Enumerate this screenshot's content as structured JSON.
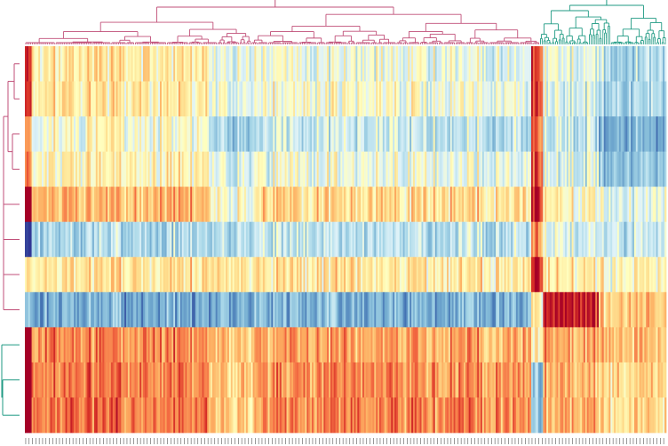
{
  "chart_data": {
    "type": "heatmap",
    "title": "",
    "xlabel": "",
    "ylabel": "",
    "row_labels": [],
    "column_labels": [],
    "n_rows": 11,
    "n_columns": 380,
    "value_range": [
      -3,
      3
    ],
    "colormap": "RdYlBu_r",
    "column_clusters": [
      {
        "name": "",
        "color": "#c04f78",
        "n_columns": 305
      },
      {
        "name": "",
        "color": "#1f9a83",
        "n_columns": 75
      }
    ],
    "row_clusters": [
      {
        "name": "",
        "color": "#c04f78",
        "rows": [
          0,
          1,
          2,
          3,
          4,
          5,
          6,
          7
        ]
      },
      {
        "name": "",
        "color": "#1f9a83",
        "rows": [
          8,
          9,
          10
        ]
      }
    ],
    "row_base_values": [
      0.35,
      0.2,
      -0.25,
      0.15,
      0.9,
      -0.9,
      0.5,
      -1.6,
      1.35,
      1.6,
      1.6
    ],
    "column_profile_segments": [
      {
        "columns": [
          0,
          4
        ],
        "row_offsets": [
          2.2,
          2.0,
          1.4,
          1.7,
          2.6,
          -2.2,
          0.2,
          0.1,
          2.2,
          2.2,
          2.0
        ]
      },
      {
        "columns": [
          5,
          110
        ],
        "row_offsets": [
          0.2,
          0.3,
          0.3,
          0.2,
          0.3,
          0.0,
          0.1,
          0.0,
          0.3,
          0.2,
          0.3
        ]
      },
      {
        "columns": [
          110,
          140
        ],
        "row_offsets": [
          -0.6,
          -0.4,
          -0.9,
          -0.6,
          -0.8,
          0.0,
          0.0,
          0.0,
          -0.4,
          -0.6,
          -0.7
        ]
      },
      {
        "columns": [
          140,
          300
        ],
        "row_offsets": [
          -0.5,
          -0.2,
          -0.4,
          -0.3,
          -0.2,
          0.2,
          0.1,
          0.1,
          0.0,
          0.0,
          0.1
        ]
      },
      {
        "columns": [
          300,
          307
        ],
        "row_offsets": [
          2.0,
          2.2,
          2.4,
          2.2,
          2.0,
          2.6,
          2.2,
          2.2,
          -1.0,
          -2.8,
          -2.8
        ]
      },
      {
        "columns": [
          307,
          340
        ],
        "row_offsets": [
          -0.6,
          -0.6,
          -0.4,
          -0.6,
          -0.7,
          0.5,
          0.0,
          4.4,
          0.0,
          -0.4,
          -0.4
        ]
      },
      {
        "columns": [
          340,
          380
        ],
        "row_offsets": [
          -1.3,
          -1.2,
          -1.3,
          -1.4,
          -1.2,
          0.2,
          -0.3,
          2.6,
          -0.3,
          -0.8,
          -0.9
        ]
      }
    ]
  }
}
